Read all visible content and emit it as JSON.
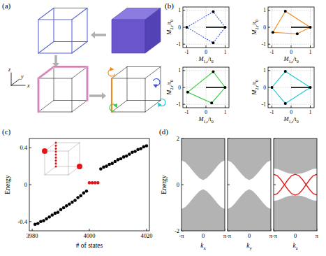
{
  "panel_labels": [
    "(a)",
    "(b)",
    "(c)",
    "(d)"
  ],
  "diagram": {
    "axis_labels": [
      "z",
      "y",
      "x"
    ]
  },
  "chart_data": [
    {
      "type": "polygon",
      "color": "#3f57d9",
      "line_style": "dashed",
      "grid": true,
      "x_label": [
        {
          "text": "M"
        },
        {
          "text": "1,r",
          "sub": true
        },
        {
          "text": "/t"
        },
        {
          "text": "0",
          "sub": true
        }
      ],
      "y_label": [
        {
          "text": "M"
        },
        {
          "text": "2,r",
          "sub": true
        },
        {
          "text": "/t"
        },
        {
          "text": "0",
          "sub": true
        }
      ],
      "xlim": [
        -1.2,
        1.2
      ],
      "ylim": [
        -1.2,
        1.2
      ],
      "xticks": [
        -1,
        0,
        1
      ],
      "yticks": [
        -1,
        0,
        1
      ],
      "x": [
        -1,
        0.38,
        1,
        0.38
      ],
      "y": [
        0,
        0.92,
        0,
        -0.92
      ],
      "vector_x": [
        0,
        1
      ],
      "vector_y": [
        0,
        0
      ]
    },
    {
      "type": "polygon",
      "color": "#f08a1e",
      "line_style": "solid",
      "grid": true,
      "x_label": [
        {
          "text": "M"
        },
        {
          "text": "1,r",
          "sub": true
        },
        {
          "text": "/t"
        },
        {
          "text": "0",
          "sub": true
        }
      ],
      "y_label": [
        {
          "text": "M"
        },
        {
          "text": "2,r",
          "sub": true
        },
        {
          "text": "/t"
        },
        {
          "text": "0",
          "sub": true
        }
      ],
      "xlim": [
        -1.2,
        1.2
      ],
      "ylim": [
        -1.2,
        1.2
      ],
      "xticks": [
        -1,
        0,
        1
      ],
      "yticks": [
        -1,
        0,
        1
      ],
      "x": [
        -0.3,
        1,
        0.32,
        -0.95
      ],
      "y": [
        0.95,
        0,
        -0.38,
        -0.3
      ],
      "vector_x": [
        0,
        1
      ],
      "vector_y": [
        0,
        0
      ]
    },
    {
      "type": "polygon",
      "color": "#2ecc40",
      "line_style": "solid",
      "grid": true,
      "x_label": [
        {
          "text": "M"
        },
        {
          "text": "1,r",
          "sub": true
        },
        {
          "text": "/t"
        },
        {
          "text": "0",
          "sub": true
        }
      ],
      "y_label": [
        {
          "text": "M"
        },
        {
          "text": "2,r",
          "sub": true
        },
        {
          "text": "/t"
        },
        {
          "text": "0",
          "sub": true
        }
      ],
      "xlim": [
        -1.2,
        1.2
      ],
      "ylim": [
        -1.2,
        1.2
      ],
      "xticks": [
        -1,
        0,
        1
      ],
      "yticks": [
        -1,
        0,
        1
      ],
      "x": [
        0.38,
        1,
        0.3,
        -0.95
      ],
      "y": [
        0.93,
        0,
        -0.92,
        -0.28
      ],
      "vector_x": [
        0,
        1
      ],
      "vector_y": [
        0,
        0
      ]
    },
    {
      "type": "polygon",
      "color": "#1ac8d8",
      "line_style": "solid",
      "grid": true,
      "x_label": [
        {
          "text": "M"
        },
        {
          "text": "1,r",
          "sub": true
        },
        {
          "text": "/t"
        },
        {
          "text": "0",
          "sub": true
        }
      ],
      "y_label": [
        {
          "text": "M"
        },
        {
          "text": "2,r",
          "sub": true
        },
        {
          "text": "/t"
        },
        {
          "text": "0",
          "sub": true
        }
      ],
      "xlim": [
        -1.2,
        1.2
      ],
      "ylim": [
        -1.2,
        1.2
      ],
      "xticks": [
        -1,
        0,
        1
      ],
      "yticks": [
        -1,
        0,
        1
      ],
      "x": [
        -0.3,
        1,
        -0.3,
        -1
      ],
      "y": [
        0.95,
        0,
        -0.95,
        0
      ],
      "vector_x": [
        0,
        1
      ],
      "vector_y": [
        0,
        0
      ]
    },
    {
      "type": "scatter",
      "x_label": "# of states",
      "y_label": "Energy",
      "xlim": [
        3979,
        4021
      ],
      "ylim": [
        -0.5,
        0.5
      ],
      "xticks": [
        3980,
        4000,
        4020
      ],
      "yticks": [
        -0.4,
        0,
        0.4
      ],
      "series": [
        {
          "color": "#000000",
          "x": [
            3981,
            3982,
            3983,
            3984,
            3985,
            3986,
            3987,
            3988,
            3989,
            3990,
            3991,
            3992,
            3993,
            3994,
            3995,
            3996,
            3997,
            3998,
            3999,
            4004,
            4005,
            4006,
            4007,
            4008,
            4009,
            4010,
            4011,
            4012,
            4013,
            4014,
            4015,
            4016,
            4017,
            4018,
            4019,
            4020
          ],
          "values": [
            -0.43,
            -0.42,
            -0.4,
            -0.39,
            -0.37,
            -0.35,
            -0.33,
            -0.31,
            -0.3,
            -0.27,
            -0.25,
            -0.23,
            -0.21,
            -0.19,
            -0.17,
            -0.14,
            -0.12,
            -0.09,
            -0.07,
            0.17,
            0.19,
            0.2,
            0.22,
            0.23,
            0.25,
            0.27,
            0.28,
            0.3,
            0.31,
            0.33,
            0.35,
            0.36,
            0.38,
            0.39,
            0.41,
            0.42
          ]
        },
        {
          "color": "#e8141c",
          "x": [
            4000,
            4001,
            4002,
            4003
          ],
          "values": [
            0.02,
            0.02,
            0.02,
            0.02
          ]
        }
      ]
    },
    {
      "type": "band",
      "x_label": [
        {
          "text": "k"
        },
        {
          "text": "x",
          "sub": true
        }
      ],
      "y_label": "Energy",
      "xlim": [
        -3.1416,
        3.1416
      ],
      "ylim": [
        -2,
        2
      ],
      "xticks": [
        {
          "value": -3.1416,
          "label": "-π"
        },
        0,
        {
          "value": 3.1416,
          "label": "π"
        }
      ],
      "yticks": [
        -2,
        0,
        2
      ],
      "x": [
        -3.1416,
        -2.618,
        -2.0944,
        -1.5708,
        -1.0472,
        -0.5236,
        0,
        0.5236,
        1.0472,
        1.5708,
        2.0944,
        2.618,
        3.1416
      ],
      "series": [
        {
          "type": "area",
          "color": "#b3b3b3",
          "values": [
            1.05,
            0.98,
            0.82,
            0.62,
            0.44,
            0.28,
            0.2,
            0.28,
            0.44,
            0.62,
            0.82,
            0.98,
            1.05
          ]
        },
        {
          "type": "area",
          "color": "#b3b3b3",
          "values": [
            -1.05,
            -0.98,
            -0.82,
            -0.62,
            -0.44,
            -0.28,
            -0.2,
            -0.28,
            -0.44,
            -0.62,
            -0.82,
            -0.98,
            -1.05
          ]
        }
      ]
    },
    {
      "type": "band",
      "x_label": [
        {
          "text": "k"
        },
        {
          "text": "y",
          "sub": true
        }
      ],
      "tick_labels": "x",
      "xlim": [
        -3.1416,
        3.1416
      ],
      "ylim": [
        -2,
        2
      ],
      "xticks": [
        {
          "value": -3.1416,
          "label": "-π"
        },
        0,
        {
          "value": 3.1416,
          "label": "π"
        }
      ],
      "yticks": [
        -2,
        0,
        2
      ],
      "x": [
        -3.1416,
        -2.618,
        -2.0944,
        -1.5708,
        -1.0472,
        -0.5236,
        0,
        0.5236,
        1.0472,
        1.5708,
        2.0944,
        2.618,
        3.1416
      ],
      "series": [
        {
          "type": "area",
          "color": "#b3b3b3",
          "values": [
            1.05,
            0.98,
            0.82,
            0.62,
            0.44,
            0.28,
            0.2,
            0.28,
            0.44,
            0.62,
            0.82,
            0.98,
            1.05
          ]
        },
        {
          "type": "area",
          "color": "#b3b3b3",
          "values": [
            -1.05,
            -0.98,
            -0.82,
            -0.62,
            -0.44,
            -0.28,
            -0.2,
            -0.28,
            -0.44,
            -0.62,
            -0.82,
            -0.98,
            -1.05
          ]
        }
      ]
    },
    {
      "type": "band",
      "x_label": [
        {
          "text": "k"
        },
        {
          "text": "z",
          "sub": true
        }
      ],
      "tick_labels": "x",
      "xlim": [
        -3.1416,
        3.1416
      ],
      "ylim": [
        -2,
        2
      ],
      "xticks": [
        {
          "value": -3.1416,
          "label": "-π"
        },
        0,
        {
          "value": 3.1416,
          "label": "π"
        }
      ],
      "yticks": [
        -2,
        0,
        2
      ],
      "x": [
        -3.1416,
        -2.618,
        -2.0944,
        -1.5708,
        -1.0472,
        -0.5236,
        0,
        0.5236,
        1.0472,
        1.5708,
        2.0944,
        2.618,
        3.1416
      ],
      "series": [
        {
          "type": "area",
          "color": "#b3b3b3",
          "values": [
            0.7,
            0.68,
            0.62,
            0.55,
            0.5,
            0.47,
            0.46,
            0.47,
            0.5,
            0.55,
            0.62,
            0.68,
            0.7
          ]
        },
        {
          "type": "area",
          "color": "#b3b3b3",
          "values": [
            -0.7,
            -0.68,
            -0.62,
            -0.55,
            -0.5,
            -0.47,
            -0.46,
            -0.47,
            -0.5,
            -0.55,
            -0.62,
            -0.68,
            -0.7
          ]
        },
        {
          "type": "line",
          "color": "#e02020",
          "values": [
            -0.45,
            -0.39,
            -0.22,
            0,
            0.22,
            0.39,
            0.45,
            0.39,
            0.22,
            0,
            -0.22,
            -0.39,
            -0.45
          ]
        },
        {
          "type": "line",
          "color": "#e02020",
          "values": [
            0.45,
            0.39,
            0.22,
            0,
            -0.22,
            -0.39,
            -0.45,
            -0.39,
            -0.22,
            0,
            0.22,
            0.39,
            0.45
          ]
        }
      ]
    }
  ]
}
